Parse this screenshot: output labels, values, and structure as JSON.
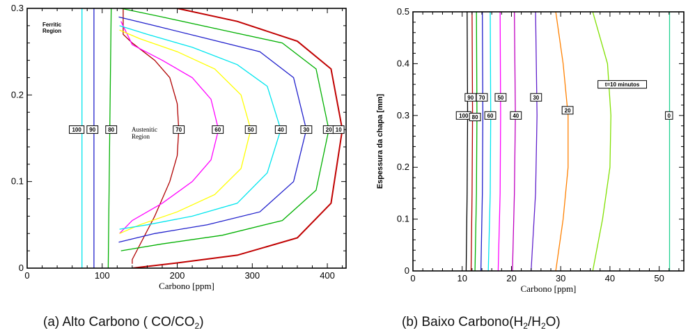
{
  "chart_data": [
    {
      "type": "line",
      "xlabel": "Carbono [ppm]",
      "ylabel": "",
      "xlim": [
        0,
        425
      ],
      "ylim": [
        0,
        0.3
      ],
      "xticks": [
        "0",
        "100",
        "200",
        "300",
        "400"
      ],
      "yticks": [
        "0",
        "0.1",
        "0.2",
        "0.3"
      ],
      "annotations": {
        "ferritic": "Ferritic Region",
        "austenitic": "Austenitic Region"
      },
      "caption_main": "(a) Alto Carbono ( CO/CO",
      "caption_sub": "2",
      "caption_end": ")",
      "series": [
        {
          "name": "100",
          "color": "#00e5ee",
          "labelx": 66,
          "labely": 0.16,
          "points": [
            [
              73,
              0
            ],
            [
              73,
              0.3
            ]
          ]
        },
        {
          "name": "90",
          "color": "#2020cc",
          "labelx": 87,
          "labely": 0.16,
          "points": [
            [
              89,
              0
            ],
            [
              89,
              0.3
            ]
          ]
        },
        {
          "name": "80",
          "color": "#00b000",
          "labelx": 112,
          "labely": 0.16,
          "points": [
            [
              108,
              0
            ],
            [
              110,
              0.15
            ],
            [
              112,
              0.3
            ]
          ]
        },
        {
          "name": "70",
          "color": "#b00000",
          "labelx": 202,
          "labely": 0.16,
          "points": [
            [
              140,
              0.005
            ],
            [
              140,
              0.01
            ],
            [
              170,
              0.06
            ],
            [
              190,
              0.1
            ],
            [
              200,
              0.13
            ],
            [
              202,
              0.16
            ],
            [
              200,
              0.19
            ],
            [
              190,
              0.22
            ],
            [
              170,
              0.24
            ],
            [
              140,
              0.26
            ],
            [
              128,
              0.27
            ],
            [
              128,
              0.3
            ]
          ]
        },
        {
          "name": "60",
          "color": "#ff00ff",
          "labelx": 254,
          "labely": 0.16,
          "points": [
            [
              123,
              0.04
            ],
            [
              140,
              0.055
            ],
            [
              180,
              0.075
            ],
            [
              220,
              0.1
            ],
            [
              245,
              0.125
            ],
            [
              255,
              0.16
            ],
            [
              245,
              0.195
            ],
            [
              220,
              0.22
            ],
            [
              180,
              0.24
            ],
            [
              140,
              0.258
            ],
            [
              125,
              0.285
            ]
          ]
        },
        {
          "name": "50",
          "color": "#ffff00",
          "labelx": 298,
          "labely": 0.16,
          "points": [
            [
              123,
              0.04
            ],
            [
              150,
              0.05
            ],
            [
              200,
              0.065
            ],
            [
              250,
              0.085
            ],
            [
              285,
              0.115
            ],
            [
              298,
              0.16
            ],
            [
              285,
              0.2
            ],
            [
              250,
              0.23
            ],
            [
              200,
              0.25
            ],
            [
              150,
              0.265
            ],
            [
              123,
              0.275
            ]
          ]
        },
        {
          "name": "40",
          "color": "#00e5ee",
          "labelx": 338,
          "labely": 0.16,
          "points": [
            [
              123,
              0.045
            ],
            [
              160,
              0.05
            ],
            [
              220,
              0.06
            ],
            [
              280,
              0.075
            ],
            [
              320,
              0.11
            ],
            [
              338,
              0.16
            ],
            [
              320,
              0.21
            ],
            [
              280,
              0.235
            ],
            [
              220,
              0.255
            ],
            [
              160,
              0.27
            ],
            [
              123,
              0.28
            ]
          ]
        },
        {
          "name": "30",
          "color": "#2020cc",
          "labelx": 372,
          "labely": 0.16,
          "points": [
            [
              122,
              0.03
            ],
            [
              170,
              0.04
            ],
            [
              240,
              0.05
            ],
            [
              310,
              0.065
            ],
            [
              355,
              0.1
            ],
            [
              372,
              0.16
            ],
            [
              355,
              0.22
            ],
            [
              310,
              0.25
            ],
            [
              240,
              0.265
            ],
            [
              170,
              0.28
            ],
            [
              122,
              0.29
            ]
          ]
        },
        {
          "name": "20",
          "color": "#00b000",
          "labelx": 402,
          "labely": 0.16,
          "points": [
            [
              125,
              0.02
            ],
            [
              180,
              0.028
            ],
            [
              260,
              0.038
            ],
            [
              340,
              0.055
            ],
            [
              385,
              0.09
            ],
            [
              402,
              0.16
            ],
            [
              385,
              0.23
            ],
            [
              340,
              0.26
            ],
            [
              260,
              0.275
            ],
            [
              180,
              0.29
            ],
            [
              125,
              0.3
            ]
          ]
        },
        {
          "name": "10",
          "color": "#c00000",
          "labelx": 415,
          "labely": 0.16,
          "points": [
            [
              140,
              0.0
            ],
            [
              200,
              0.006
            ],
            [
              280,
              0.015
            ],
            [
              360,
              0.035
            ],
            [
              405,
              0.075
            ],
            [
              420,
              0.16
            ],
            [
              405,
              0.23
            ],
            [
              360,
              0.262
            ],
            [
              280,
              0.285
            ],
            [
              200,
              0.3
            ]
          ]
        }
      ]
    },
    {
      "type": "line",
      "xlabel": "Carbono [ppm]",
      "ylabel": "Espessura da chapa [mm]",
      "xlim": [
        0,
        55
      ],
      "ylim": [
        0,
        0.5
      ],
      "xticks": [
        "0",
        "10",
        "20",
        "30",
        "40",
        "50"
      ],
      "yticks": [
        "0",
        "0.1",
        "0.2",
        "0.3",
        "0.4",
        "0.5"
      ],
      "caption_main": "(b) Baixo Carbono(H",
      "caption_sub1": "2",
      "caption_mid": "/H",
      "caption_sub2": "2",
      "caption_end": "O)",
      "series": [
        {
          "name": "100",
          "color": "#000000",
          "labelx": 10.3,
          "labely": 0.3,
          "points": [
            [
              10.8,
              0
            ],
            [
              11.0,
              0.15
            ],
            [
              11.1,
              0.3
            ],
            [
              11.0,
              0.5
            ]
          ]
        },
        {
          "name": "90",
          "color": "#b00000",
          "labelx": 11.7,
          "labely": 0.335,
          "points": [
            [
              11.8,
              0
            ],
            [
              12.0,
              0.15
            ],
            [
              12.1,
              0.3
            ],
            [
              12.0,
              0.5
            ]
          ]
        },
        {
          "name": "80",
          "color": "#00b000",
          "labelx": 12.6,
          "labely": 0.297,
          "points": [
            [
              12.6,
              0
            ],
            [
              12.9,
              0.15
            ],
            [
              13.0,
              0.3
            ],
            [
              12.9,
              0.5
            ]
          ]
        },
        {
          "name": "70",
          "color": "#2020cc",
          "labelx": 14.0,
          "labely": 0.335,
          "points": [
            [
              13.8,
              0
            ],
            [
              14.1,
              0.15
            ],
            [
              14.2,
              0.3
            ],
            [
              14.1,
              0.5
            ]
          ]
        },
        {
          "name": "60",
          "color": "#00e5ee",
          "labelx": 15.7,
          "labely": 0.3,
          "points": [
            [
              15.3,
              0
            ],
            [
              15.7,
              0.15
            ],
            [
              15.8,
              0.3
            ],
            [
              15.7,
              0.5
            ]
          ]
        },
        {
          "name": "50",
          "color": "#ff00ff",
          "labelx": 17.8,
          "labely": 0.335,
          "points": [
            [
              17.3,
              0
            ],
            [
              17.7,
              0.15
            ],
            [
              17.8,
              0.3
            ],
            [
              17.7,
              0.5
            ]
          ]
        },
        {
          "name": "40",
          "color": "#c000c0",
          "labelx": 20.9,
          "labely": 0.3,
          "points": [
            [
              20.2,
              0
            ],
            [
              20.6,
              0.15
            ],
            [
              20.8,
              0.3
            ],
            [
              20.6,
              0.5
            ]
          ]
        },
        {
          "name": "30",
          "color": "#6020cc",
          "labelx": 25.0,
          "labely": 0.335,
          "points": [
            [
              24.0,
              0
            ],
            [
              24.9,
              0.15
            ],
            [
              25.2,
              0.3
            ],
            [
              24.9,
              0.5
            ]
          ]
        },
        {
          "name": "20",
          "color": "#ff8000",
          "labelx": 31.4,
          "labely": 0.31,
          "points": [
            [
              29.0,
              0
            ],
            [
              30.5,
              0.1
            ],
            [
              31.5,
              0.2
            ],
            [
              31.5,
              0.3
            ],
            [
              30.5,
              0.4
            ],
            [
              29.0,
              0.5
            ]
          ]
        },
        {
          "name": "t=10 minutos",
          "color": "#80e000",
          "labelx": 42.5,
          "labely": 0.36,
          "points": [
            [
              36.5,
              0
            ],
            [
              38.5,
              0.1
            ],
            [
              40.0,
              0.2
            ],
            [
              40.2,
              0.3
            ],
            [
              39.5,
              0.4
            ],
            [
              36.5,
              0.5
            ]
          ]
        },
        {
          "name": "0",
          "color": "#20d090",
          "labelx": 52.0,
          "labely": 0.3,
          "points": [
            [
              52.1,
              0
            ],
            [
              52.1,
              0.5
            ]
          ]
        }
      ]
    }
  ]
}
